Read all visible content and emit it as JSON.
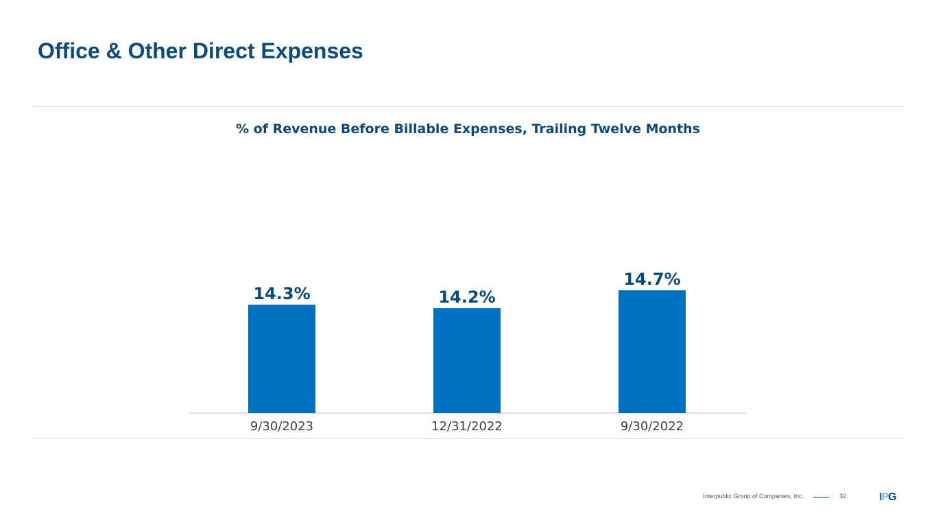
{
  "slide": {
    "title": "Office & Other Direct Expenses"
  },
  "chart_data": {
    "type": "bar",
    "title": "% of Revenue Before Billable Expenses, Trailing Twelve Months",
    "categories": [
      "9/30/2023",
      "12/31/2022",
      "9/30/2022"
    ],
    "values": [
      14.3,
      14.2,
      14.7
    ],
    "data_labels": [
      "14.3%",
      "14.2%",
      "14.7%"
    ],
    "xlabel": "",
    "ylabel": "",
    "grid": false,
    "legend": "none",
    "bar_color": "#0070c0",
    "label_color": "#0b4a7c"
  },
  "footer": {
    "company": "Interpublic Group of Companies, Inc.",
    "page_number": "32",
    "logo_letters": [
      "I",
      "P",
      "G"
    ]
  }
}
